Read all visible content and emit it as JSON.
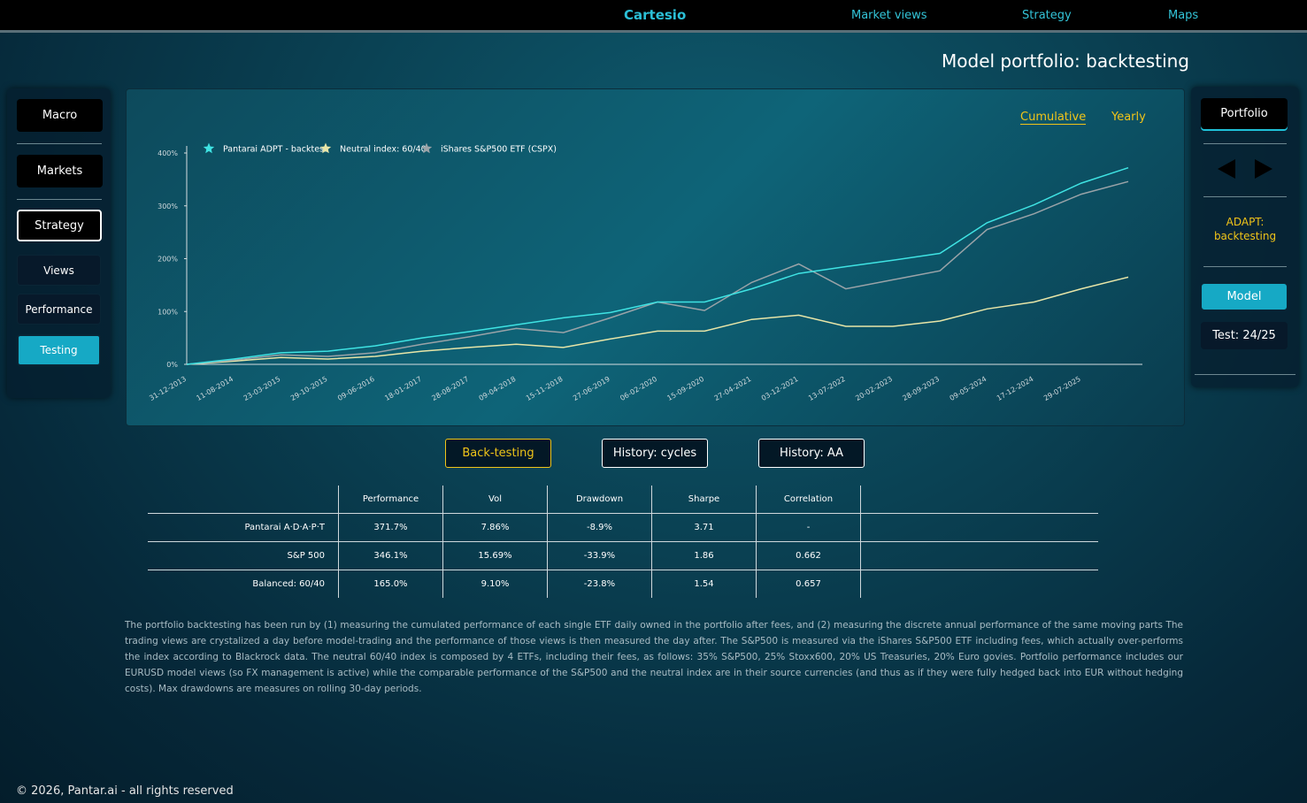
{
  "nav": {
    "brand": "Cartesio",
    "links": [
      "Market views",
      "Strategy",
      "Maps"
    ]
  },
  "page_title": "Model portfolio: backtesting",
  "sidebar_left": {
    "buttons": [
      "Macro",
      "Markets",
      "Strategy",
      "Views",
      "Performance",
      "Testing"
    ]
  },
  "sidebar_right": {
    "portfolio": "Portfolio",
    "caption": "ADAPT:\nbacktesting",
    "model": "Model",
    "test": "Test: 24/25"
  },
  "chart_tabs": [
    "Cumulative",
    "Yearly"
  ],
  "chart_data": {
    "type": "line",
    "categories": [
      "31-12-2013",
      "11-08-2014",
      "23-03-2015",
      "29-10-2015",
      "09-06-2016",
      "18-01-2017",
      "28-08-2017",
      "09-04-2018",
      "15-11-2018",
      "27-06-2019",
      "06-02-2020",
      "15-09-2020",
      "27-04-2021",
      "03-12-2021",
      "13-07-2022",
      "20-02-2023",
      "28-09-2023",
      "09-05-2024",
      "17-12-2024",
      "29-07-2025",
      null
    ],
    "series": [
      {
        "name": "Pantarai ADPT - backtest",
        "color": "#3fe3e3",
        "values": [
          0,
          10,
          22,
          25,
          35,
          50,
          62,
          75,
          88,
          98,
          118,
          118,
          143,
          172,
          185,
          197,
          210,
          268,
          302,
          343,
          372
        ]
      },
      {
        "name": "Neutral index: 60/40",
        "color": "#e8e6a8",
        "values": [
          0,
          6,
          13,
          10,
          15,
          25,
          32,
          38,
          32,
          48,
          63,
          63,
          85,
          93,
          72,
          72,
          82,
          105,
          118,
          143,
          165
        ]
      },
      {
        "name": "iShares S&P500 ETF (CSPX)",
        "color": "#9aa3a8",
        "values": [
          0,
          8,
          18,
          15,
          22,
          38,
          52,
          68,
          60,
          88,
          118,
          102,
          155,
          190,
          143,
          160,
          177,
          255,
          285,
          322,
          346
        ]
      }
    ],
    "ylim": [
      0,
      400
    ],
    "yticks": [
      {
        "value": 0,
        "label": "0%"
      },
      {
        "value": 100,
        "label": "100%"
      },
      {
        "value": 200,
        "label": "200%"
      },
      {
        "value": 300,
        "label": "300%"
      },
      {
        "value": 400,
        "label": "400%"
      }
    ],
    "grid": false,
    "legend": "top-left"
  },
  "tabs": [
    "Back-testing",
    "History: cycles",
    "History: AA"
  ],
  "table": {
    "header": [
      "Performance",
      "Vol",
      "Drawdown",
      "Sharpe",
      "Correlation"
    ],
    "rows": [
      [
        "Pantarai A·D·A·P·T",
        "371.7%",
        "7.86%",
        "-8.9%",
        "3.71",
        "-"
      ],
      [
        "S&P 500",
        "346.1%",
        "15.69%",
        "-33.9%",
        "1.86",
        "0.662"
      ],
      [
        "Balanced: 60/40",
        "165.0%",
        "9.10%",
        "-23.8%",
        "1.54",
        "0.657"
      ]
    ]
  },
  "note": "The portfolio backtesting has been run by (1) measuring the cumulated performance of each single ETF daily owned in the portfolio after fees, and (2) measuring the discrete annual performance of the same moving parts The trading views are crystalized a day before model-trading and the performance of those views is then measured the day after. The S&P500 is measured via the iShares S&P500 ETF including fees, which actually over-performs the index according to Blackrock data. The neutral 60/40 index is composed by 4 ETFs, including their fees, as follows: 35% S&P500, 25% Stoxx600, 20% US Treasuries, 20% Euro govies. Portfolio performance includes our EURUSD model views (so FX management is active) while the comparable performance of the S&P500 and the neutral index are in their source currencies (and thus as if they were fully hedged back into EUR without hedging costs). Max drawdowns are measures on rolling 30-day periods.",
  "footer": "© 2026, Pantar.ai - all rights reserved"
}
